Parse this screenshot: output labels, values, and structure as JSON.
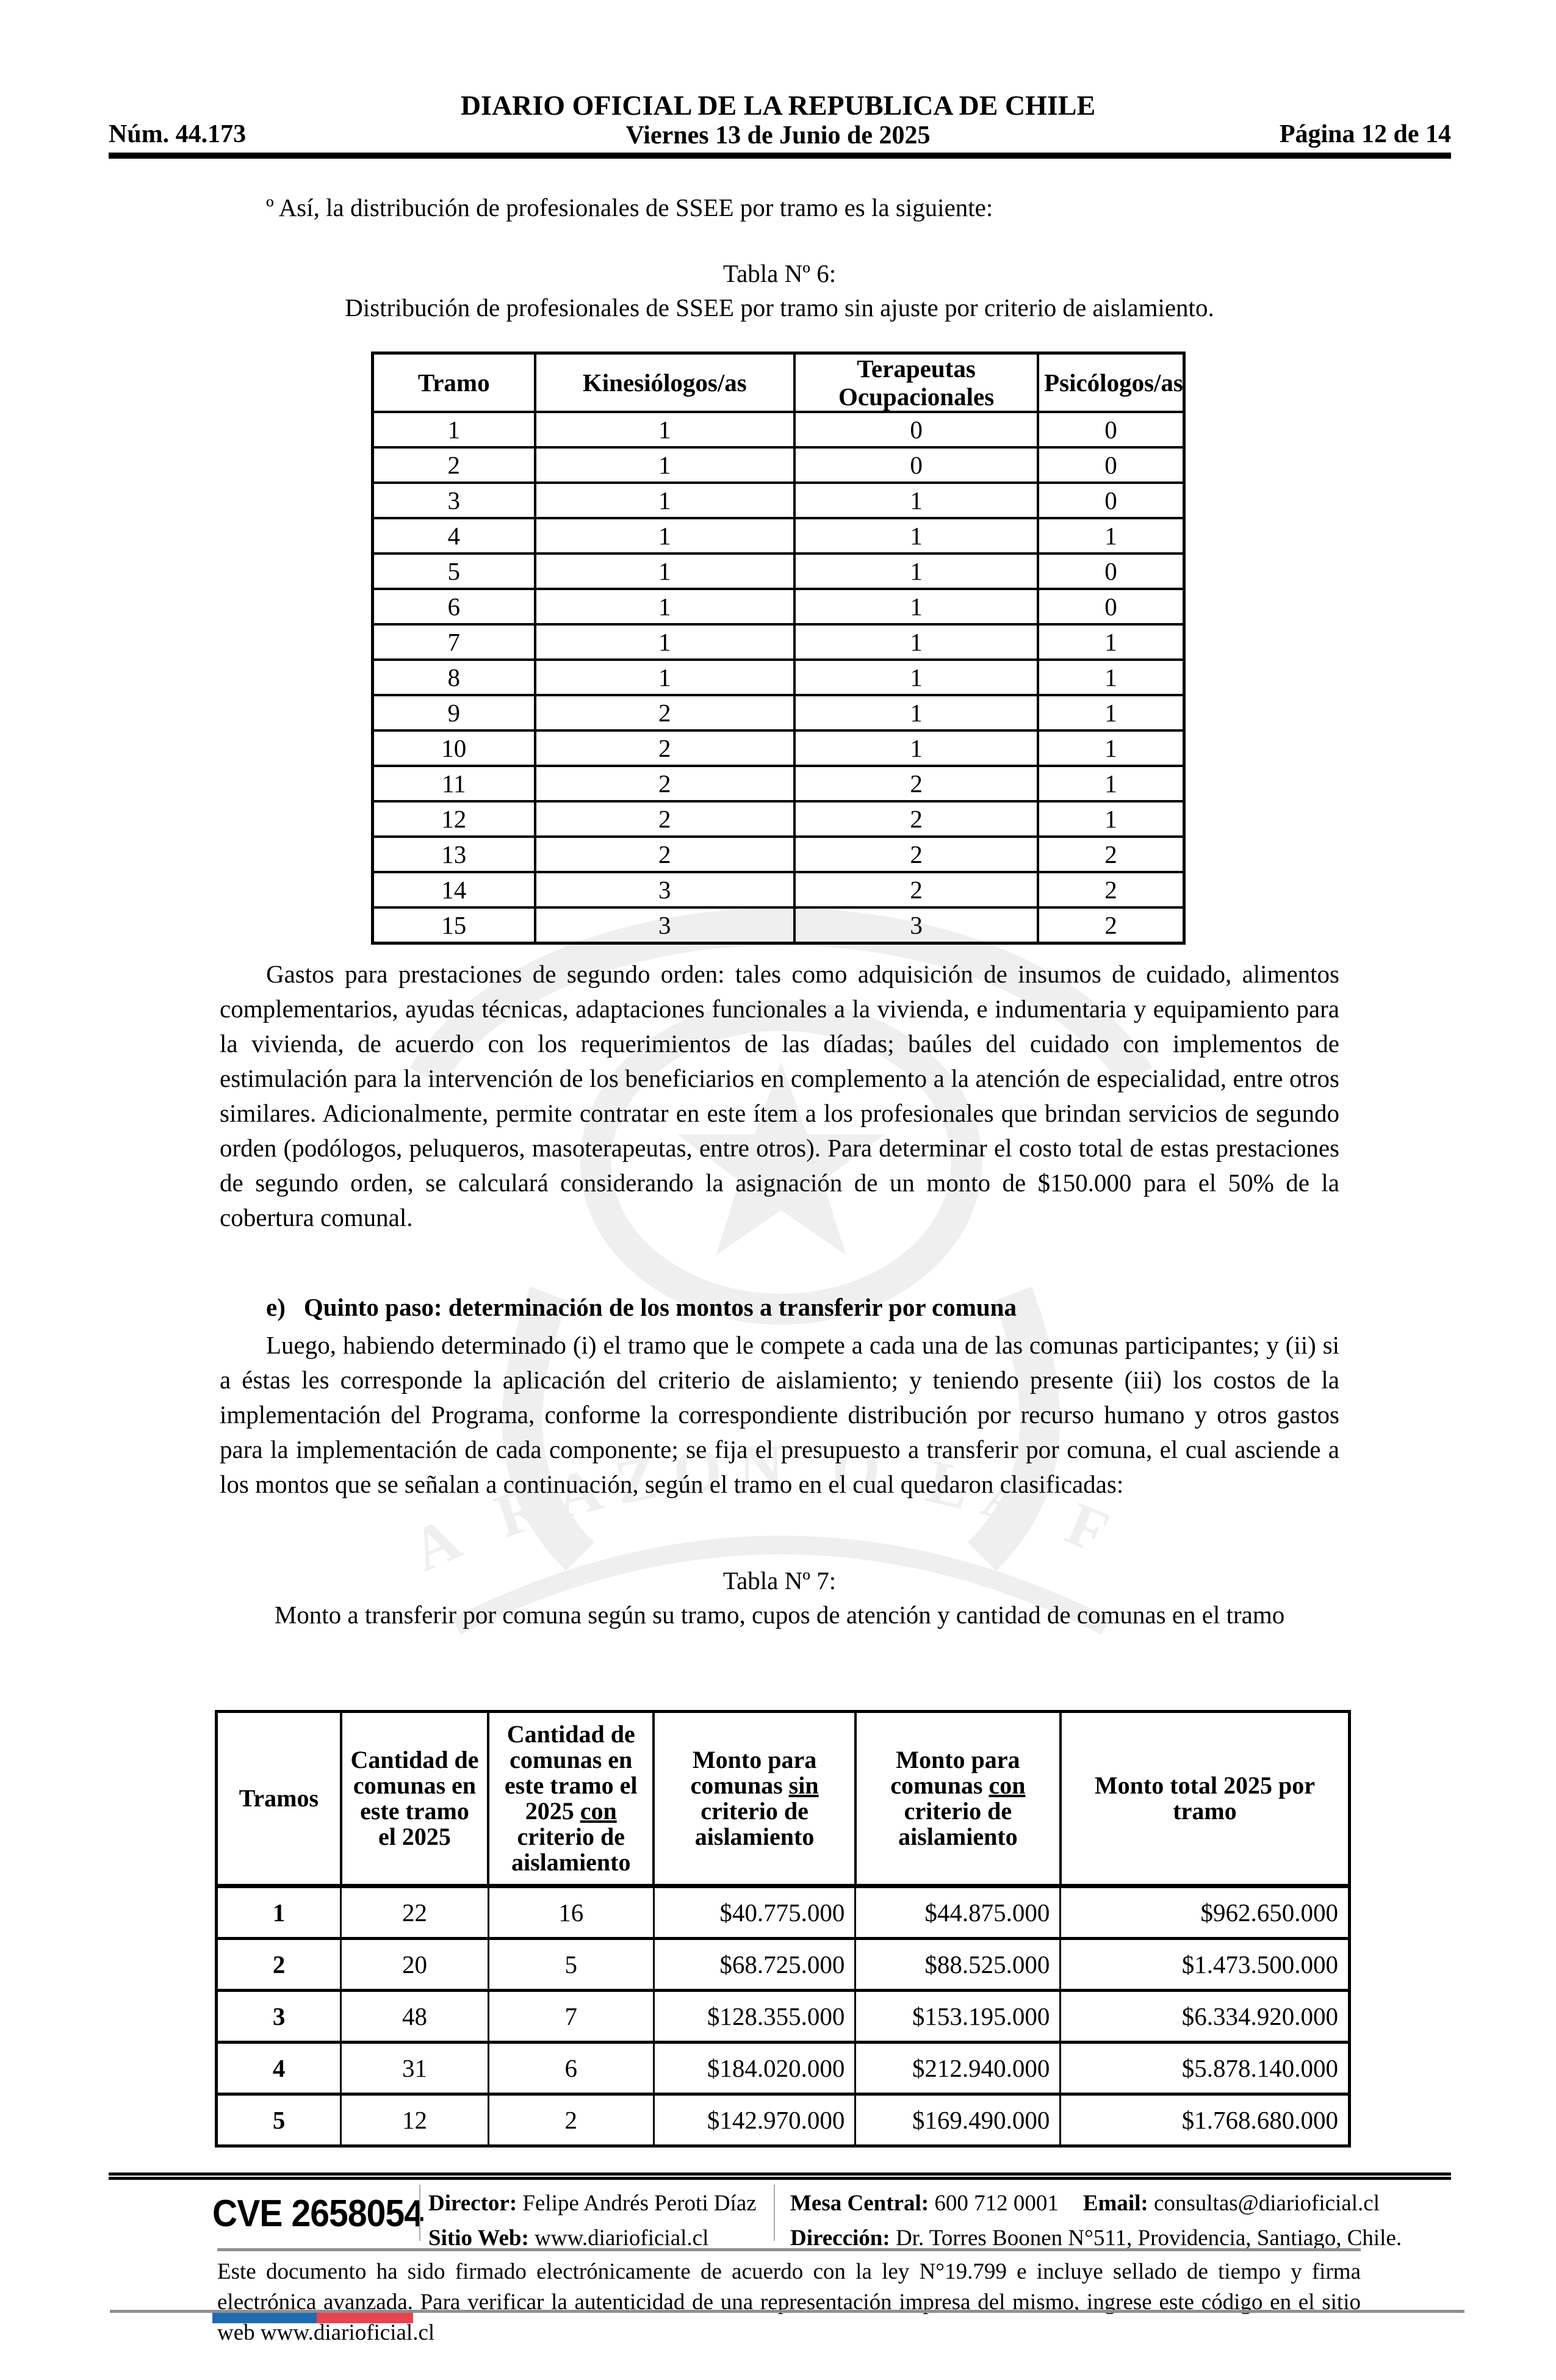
{
  "header": {
    "issue": "Núm. 44.173",
    "title": "DIARIO OFICIAL DE LA REPUBLICA DE CHILE",
    "date": "Viernes 13 de Junio de 2025",
    "page_indicator": "Página 12 de 14"
  },
  "body": {
    "intro": "º Así, la distribución de profesionales de SSEE por tramo es la siguiente:",
    "tabla6": {
      "caption1": "Tabla Nº 6:",
      "caption2": "Distribución de profesionales de SSEE por tramo sin ajuste por criterio de aislamiento.",
      "columns": [
        "Tramo",
        "Kinesiólogos/as",
        "Terapeutas Ocupacionales",
        "Psicólogos/as"
      ],
      "rows": [
        [
          "1",
          "1",
          "0",
          "0"
        ],
        [
          "2",
          "1",
          "0",
          "0"
        ],
        [
          "3",
          "1",
          "1",
          "0"
        ],
        [
          "4",
          "1",
          "1",
          "1"
        ],
        [
          "5",
          "1",
          "1",
          "0"
        ],
        [
          "6",
          "1",
          "1",
          "0"
        ],
        [
          "7",
          "1",
          "1",
          "1"
        ],
        [
          "8",
          "1",
          "1",
          "1"
        ],
        [
          "9",
          "2",
          "1",
          "1"
        ],
        [
          "10",
          "2",
          "1",
          "1"
        ],
        [
          "11",
          "2",
          "2",
          "1"
        ],
        [
          "12",
          "2",
          "2",
          "1"
        ],
        [
          "13",
          "2",
          "2",
          "2"
        ],
        [
          "14",
          "3",
          "2",
          "2"
        ],
        [
          "15",
          "3",
          "3",
          "2"
        ]
      ]
    },
    "gastos": "Gastos para prestaciones de segundo orden: tales como adquisición de insumos de cuidado, alimentos complementarios, ayudas técnicas, adaptaciones funcionales a la vivienda, e indumentaria y equipamiento para la vivienda, de acuerdo con los requerimientos de las díadas; baúles del cuidado con implementos de estimulación para la intervención de los beneficiarios en complemento a la atención de especialidad, entre otros similares. Adicionalmente, permite contratar en este ítem a los profesionales que brindan servicios de segundo orden (podólogos, peluqueros, masoterapeutas, entre otros). Para determinar el costo total de estas prestaciones de segundo orden, se calculará considerando la asignación de un monto de $150.000 para el 50% de la cobertura comunal.",
    "heading_e": {
      "label": "e)",
      "text": "Quinto paso: determinación de los montos a transferir por comuna"
    },
    "luego": "Luego, habiendo determinado (i) el tramo que le compete a cada una de las comunas participantes; y (ii) si a éstas les corresponde la aplicación del criterio de aislamiento; y teniendo presente (iii) los costos de la implementación del Programa, conforme la correspondiente distribución por recurso humano y otros gastos para la implementación de cada componente; se fija el presupuesto a transferir por comuna, el cual asciende a los montos que se señalan a continuación, según el tramo en el cual quedaron clasificadas:",
    "tabla7": {
      "caption1": "Tabla Nº 7:",
      "caption2": "Monto a transferir por comuna según su tramo, cupos de atención y cantidad de comunas en el tramo",
      "columns": [
        {
          "parts": [
            {
              "t": "Tramos"
            }
          ]
        },
        {
          "parts": [
            {
              "t": "Cantidad de comunas en este tramo el 2025"
            }
          ]
        },
        {
          "parts": [
            {
              "t": "Cantidad de comunas en este tramo el 2025 "
            },
            {
              "t": "con",
              "u": true
            },
            {
              "t": " criterio de aislamiento"
            }
          ]
        },
        {
          "parts": [
            {
              "t": "Monto para comunas "
            },
            {
              "t": "sin",
              "u": true
            },
            {
              "t": " criterio de aislamiento"
            }
          ]
        },
        {
          "parts": [
            {
              "t": "Monto para comunas "
            },
            {
              "t": "con",
              "u": true
            },
            {
              "t": " criterio de aislamiento"
            }
          ]
        },
        {
          "parts": [
            {
              "t": "Monto total 2025 por tramo"
            }
          ]
        }
      ],
      "rows": [
        [
          "1",
          "22",
          "16",
          "$40.775.000",
          "$44.875.000",
          "$962.650.000"
        ],
        [
          "2",
          "20",
          "5",
          "$68.725.000",
          "$88.525.000",
          "$1.473.500.000"
        ],
        [
          "3",
          "48",
          "7",
          "$128.355.000",
          "$153.195.000",
          "$6.334.920.000"
        ],
        [
          "4",
          "31",
          "6",
          "$184.020.000",
          "$212.940.000",
          "$5.878.140.000"
        ],
        [
          "5",
          "12",
          "2",
          "$142.970.000",
          "$169.490.000",
          "$1.768.680.000"
        ]
      ]
    }
  },
  "watermark": {
    "motto": "POR LA RAZON O LA FUERZA"
  },
  "footer": {
    "cve": "CVE 2658054",
    "director_label": "Director: ",
    "director": "Felipe Andrés Peroti Díaz",
    "sitio_label": "Sitio Web: ",
    "sitio": "www.diarioficial.cl",
    "mesa_label": "Mesa Central: ",
    "mesa": "600 712 0001",
    "email_label": "Email: ",
    "email": "consultas@diarioficial.cl",
    "direccion_label": "Dirección: ",
    "direccion": "Dr. Torres Boonen N°511, Providencia, Santiago, Chile.",
    "legal": "Este documento ha sido firmado electrónicamente de acuerdo con la ley N°19.799 e incluye sellado de tiempo y firma electrónica avanzada. Para verificar la autenticidad de una representación impresa del mismo, ingrese este código en el sitio web www.diarioficial.cl"
  },
  "colors": {
    "flag_blue": "#1e6bb0",
    "flag_red": "#ea4250",
    "rule_gray": "#8f8f8f"
  }
}
